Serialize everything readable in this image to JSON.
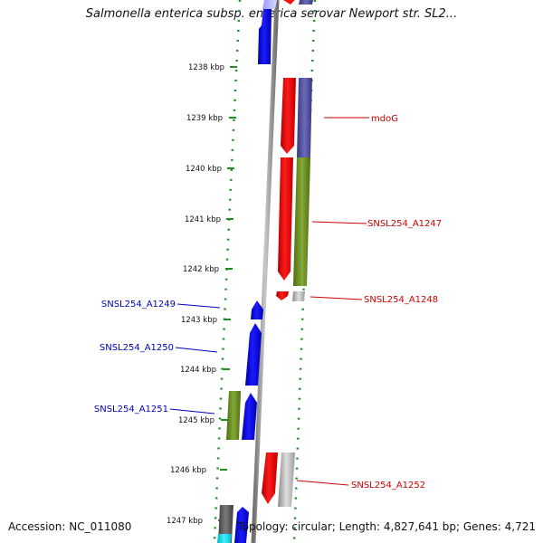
{
  "title": "Salmonella enterica subsp. enterica serovar Newport str. SL2...",
  "footer": {
    "accession": "Accession: NC_011080",
    "topology": "Topology: circular; Length: 4,827,641 bp; Genes: 4,721"
  },
  "kbp_labels": [
    "1238 kbp",
    "1239 kbp",
    "1240 kbp",
    "1241 kbp",
    "1242 kbp",
    "1243 kbp",
    "1244 kbp",
    "1245 kbp",
    "1246 kbp",
    "1247 kbp"
  ],
  "gene_labels": [
    {
      "name": "mdoG",
      "strand": "reverse",
      "color": "#cc0000"
    },
    {
      "name": "SNSL254_A1247",
      "strand": "reverse",
      "color": "#cc0000"
    },
    {
      "name": "SNSL254_A1248",
      "strand": "reverse",
      "color": "#cc0000"
    },
    {
      "name": "SNSL254_A1249",
      "strand": "forward",
      "color": "#0000bb"
    },
    {
      "name": "SNSL254_A1250",
      "strand": "forward",
      "color": "#0000bb"
    },
    {
      "name": "SNSL254_A1251",
      "strand": "forward",
      "color": "#0000bb"
    },
    {
      "name": "SNSL254_A1252",
      "strand": "reverse",
      "color": "#cc0000"
    }
  ]
}
